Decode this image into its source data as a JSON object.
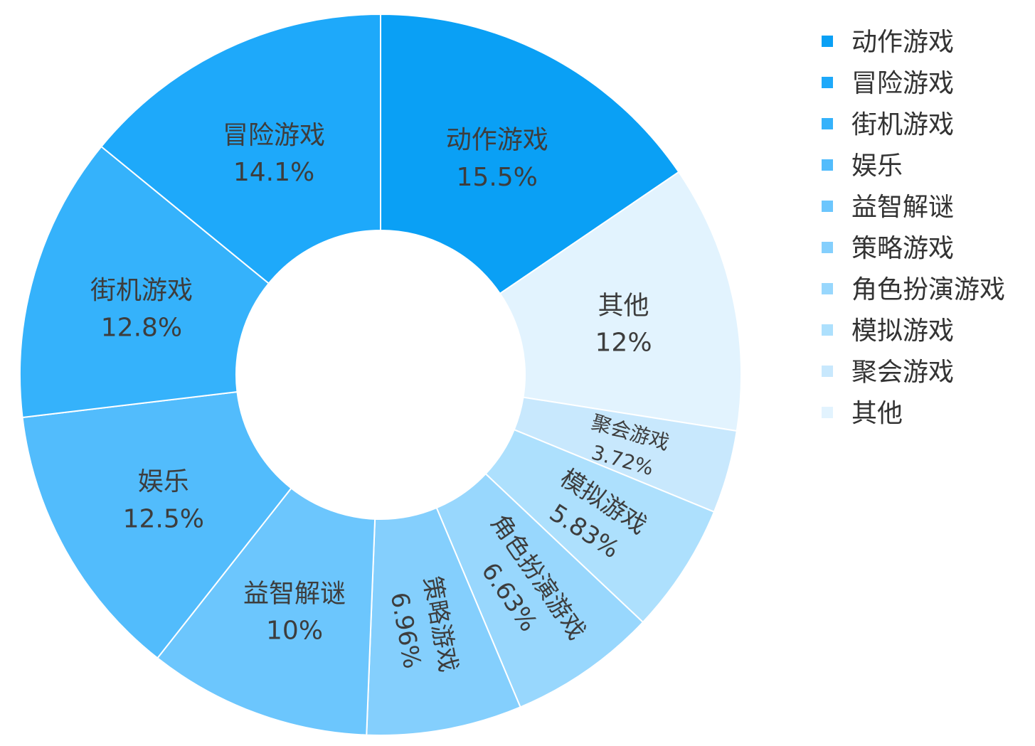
{
  "chart_data": {
    "type": "pie",
    "variant": "donut",
    "categories": [
      "动作游戏",
      "冒险游戏",
      "街机游戏",
      "娱乐",
      "益智解谜",
      "策略游戏",
      "角色扮演游戏",
      "模拟游戏",
      "聚会游戏",
      "其他"
    ],
    "slices": [
      {
        "label": "动作游戏",
        "value": 15.5,
        "value_label": "15.5%",
        "color": "#0aa0f5"
      },
      {
        "label": "其他",
        "value": 12,
        "value_label": "12%",
        "color": "#e2f3fe"
      },
      {
        "label": "聚会游戏",
        "value": 3.72,
        "value_label": "3.72%",
        "color": "#c8e8fd"
      },
      {
        "label": "模拟游戏",
        "value": 5.83,
        "value_label": "5.83%",
        "color": "#ade0fd"
      },
      {
        "label": "角色扮演游戏",
        "value": 6.63,
        "value_label": "6.63%",
        "color": "#98d7fd"
      },
      {
        "label": "策略游戏",
        "value": 6.96,
        "value_label": "6.96%",
        "color": "#84cffd"
      },
      {
        "label": "益智解谜",
        "value": 10,
        "value_label": "10%",
        "color": "#6cc6fd"
      },
      {
        "label": "娱乐",
        "value": 12.5,
        "value_label": "12.5%",
        "color": "#52bcfc"
      },
      {
        "label": "街机游戏",
        "value": 12.8,
        "value_label": "12.8%",
        "color": "#35b2fb"
      },
      {
        "label": "冒险游戏",
        "value": 14.1,
        "value_label": "14.1%",
        "color": "#1ea9fa"
      }
    ],
    "legend": {
      "position": "right",
      "items": [
        {
          "label": "动作游戏",
          "color": "#0aa0f5"
        },
        {
          "label": "冒险游戏",
          "color": "#1ea9fa"
        },
        {
          "label": "街机游戏",
          "color": "#35b2fb"
        },
        {
          "label": "娱乐",
          "color": "#52bcfc"
        },
        {
          "label": "益智解谜",
          "color": "#6cc6fd"
        },
        {
          "label": "策略游戏",
          "color": "#84cffd"
        },
        {
          "label": "角色扮演游戏",
          "color": "#98d7fd"
        },
        {
          "label": "模拟游戏",
          "color": "#ade0fd"
        },
        {
          "label": "聚会游戏",
          "color": "#c8e8fd"
        },
        {
          "label": "其他",
          "color": "#e2f3fe"
        }
      ]
    }
  }
}
